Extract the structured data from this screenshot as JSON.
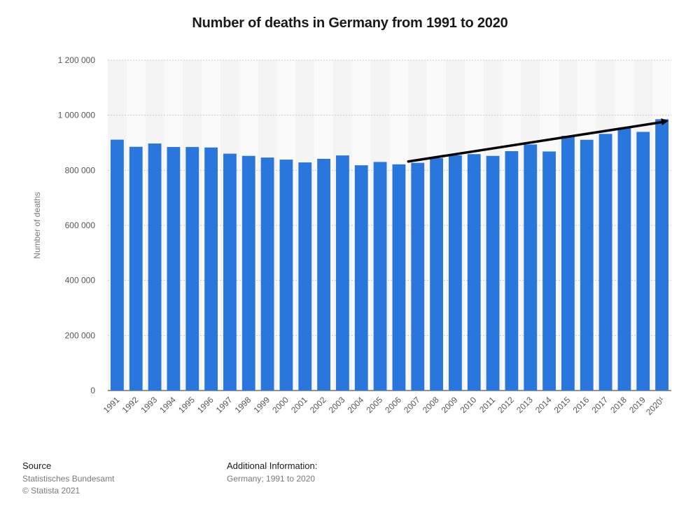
{
  "chart_data": {
    "type": "bar",
    "title": "Number of deaths in Germany from 1991 to 2020",
    "xlabel": "",
    "ylabel": "Number of deaths",
    "ylim": [
      0,
      1200000
    ],
    "yticks": [
      0,
      200000,
      400000,
      600000,
      800000,
      1000000,
      1200000
    ],
    "ytick_labels": [
      "0",
      "200 000",
      "400 000",
      "600 000",
      "800 000",
      "1 000 000",
      "1 200 000"
    ],
    "categories": [
      "1991",
      "1992",
      "1993",
      "1994",
      "1995",
      "1996",
      "1997",
      "1998",
      "1999",
      "2000",
      "2001",
      "2002",
      "2003",
      "2004",
      "2005",
      "2006",
      "2007",
      "2008",
      "2009",
      "2010",
      "2011",
      "2012",
      "2013",
      "2014",
      "2015",
      "2016",
      "2017",
      "2018",
      "2019",
      "2020¹"
    ],
    "values": [
      911245,
      885443,
      897270,
      884661,
      884588,
      882843,
      860389,
      852382,
      846330,
      838797,
      828541,
      841686,
      853946,
      818271,
      830227,
      821627,
      827155,
      844439,
      854544,
      858768,
      852328,
      869582,
      893825,
      868356,
      925200,
      910902,
      932272,
      954874,
      939520,
      985572
    ],
    "bar_color": "#2976dd",
    "trend_line": {
      "from_category": "2007",
      "to_category": "2020¹",
      "from_value": 832000,
      "to_value": 980000,
      "color": "#000000"
    },
    "grid": true
  },
  "footer": {
    "source_heading": "Source",
    "source_lines": [
      "Statistisches Bundesamt",
      "© Statista 2021"
    ],
    "info_heading": "Additional Information:",
    "info_text": "Germany; 1991 to 2020"
  }
}
